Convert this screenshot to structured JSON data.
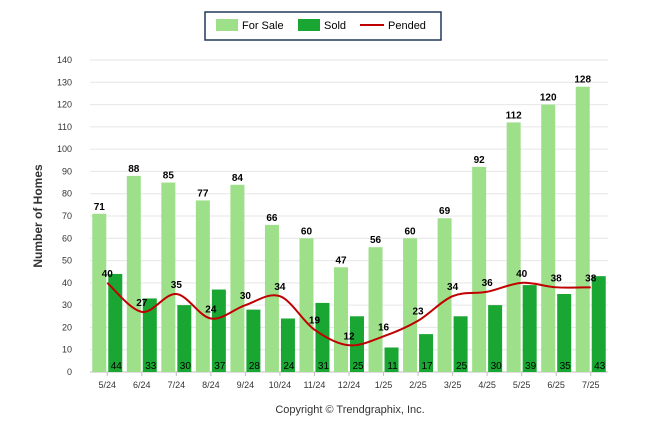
{
  "chart_data": {
    "type": "bar",
    "categories": [
      "5/24",
      "6/24",
      "7/24",
      "8/24",
      "9/24",
      "10/24",
      "11/24",
      "12/24",
      "1/25",
      "2/25",
      "3/25",
      "4/25",
      "5/25",
      "6/25",
      "7/25"
    ],
    "series": [
      {
        "name": "For Sale",
        "kind": "bar",
        "color": "#9ee08a",
        "values": [
          71,
          88,
          85,
          77,
          84,
          66,
          60,
          47,
          56,
          60,
          69,
          92,
          112,
          120,
          128
        ]
      },
      {
        "name": "Sold",
        "kind": "bar",
        "color": "#19a632",
        "values": [
          44,
          33,
          30,
          37,
          28,
          24,
          31,
          25,
          11,
          17,
          25,
          30,
          39,
          35,
          43
        ]
      },
      {
        "name": "Pended",
        "kind": "line",
        "color": "#c00000",
        "values": [
          40,
          27,
          35,
          24,
          30,
          34,
          19,
          12,
          16,
          23,
          34,
          36,
          40,
          38,
          38
        ]
      }
    ],
    "ylabel": "Number of Homes",
    "xlabel": "",
    "ylim": [
      0,
      140
    ],
    "yticks": [
      0,
      10,
      20,
      30,
      40,
      50,
      60,
      70,
      80,
      90,
      100,
      110,
      120,
      130,
      140
    ],
    "grid": true,
    "legend_position": "top-center"
  },
  "footer": "Copyright © Trendgraphix, Inc."
}
